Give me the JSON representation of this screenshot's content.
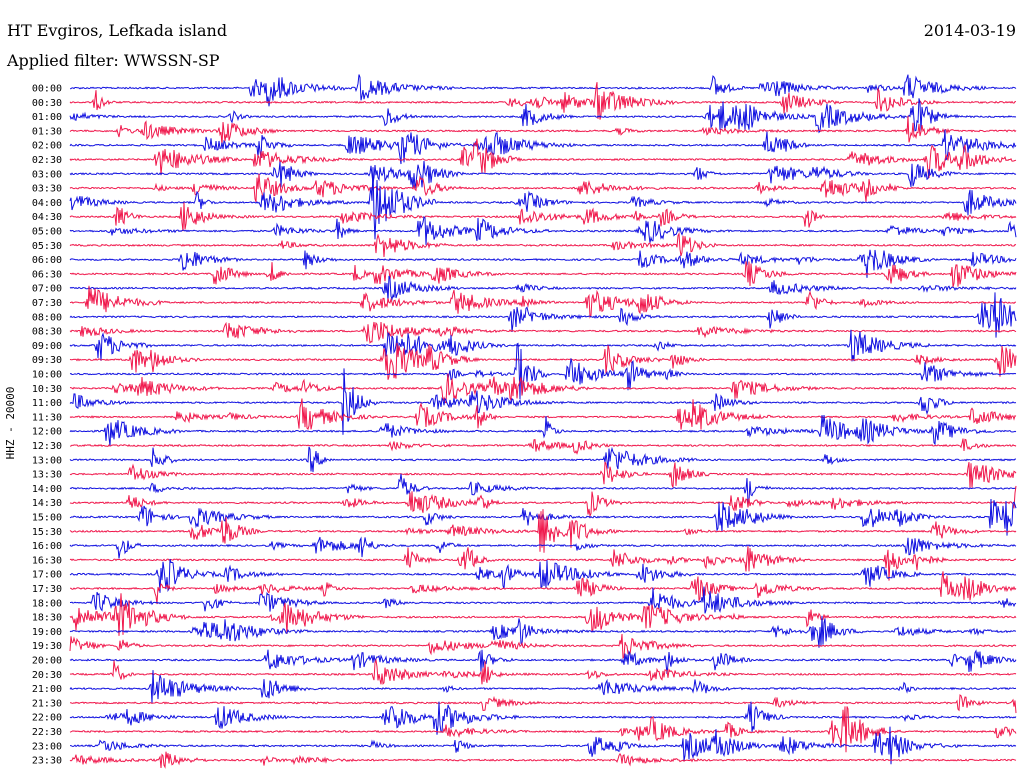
{
  "header": {
    "station": "HT Evgiros, Lefkada island",
    "date": "2014-03-19",
    "filter": "Applied filter: WWSSN-SP"
  },
  "colors": {
    "blue": "#1010e0",
    "red": "#f0184c",
    "text": "#000000"
  },
  "chart_data": {
    "type": "line",
    "title": "HT Evgiros, Lefkada island",
    "subtitle": "Applied filter: WWSSN-SP",
    "ylabel": "HHZ - 20000",
    "xlabel": "",
    "grid": false,
    "legend": "none",
    "row_colors": [
      "blue",
      "red"
    ],
    "rows": [
      "00:00",
      "00:30",
      "01:00",
      "01:30",
      "02:00",
      "02:30",
      "03:00",
      "03:30",
      "04:00",
      "04:30",
      "05:00",
      "05:30",
      "06:00",
      "06:30",
      "07:00",
      "07:30",
      "08:00",
      "08:30",
      "09:00",
      "09:30",
      "10:00",
      "10:30",
      "11:00",
      "11:30",
      "12:00",
      "12:30",
      "13:00",
      "13:30",
      "14:00",
      "14:30",
      "15:00",
      "15:30",
      "16:00",
      "16:30",
      "17:00",
      "17:30",
      "18:00",
      "18:30",
      "19:00",
      "19:30",
      "20:00",
      "20:30",
      "21:00",
      "21:30",
      "22:00",
      "22:30",
      "23:00",
      "23:30"
    ]
  }
}
